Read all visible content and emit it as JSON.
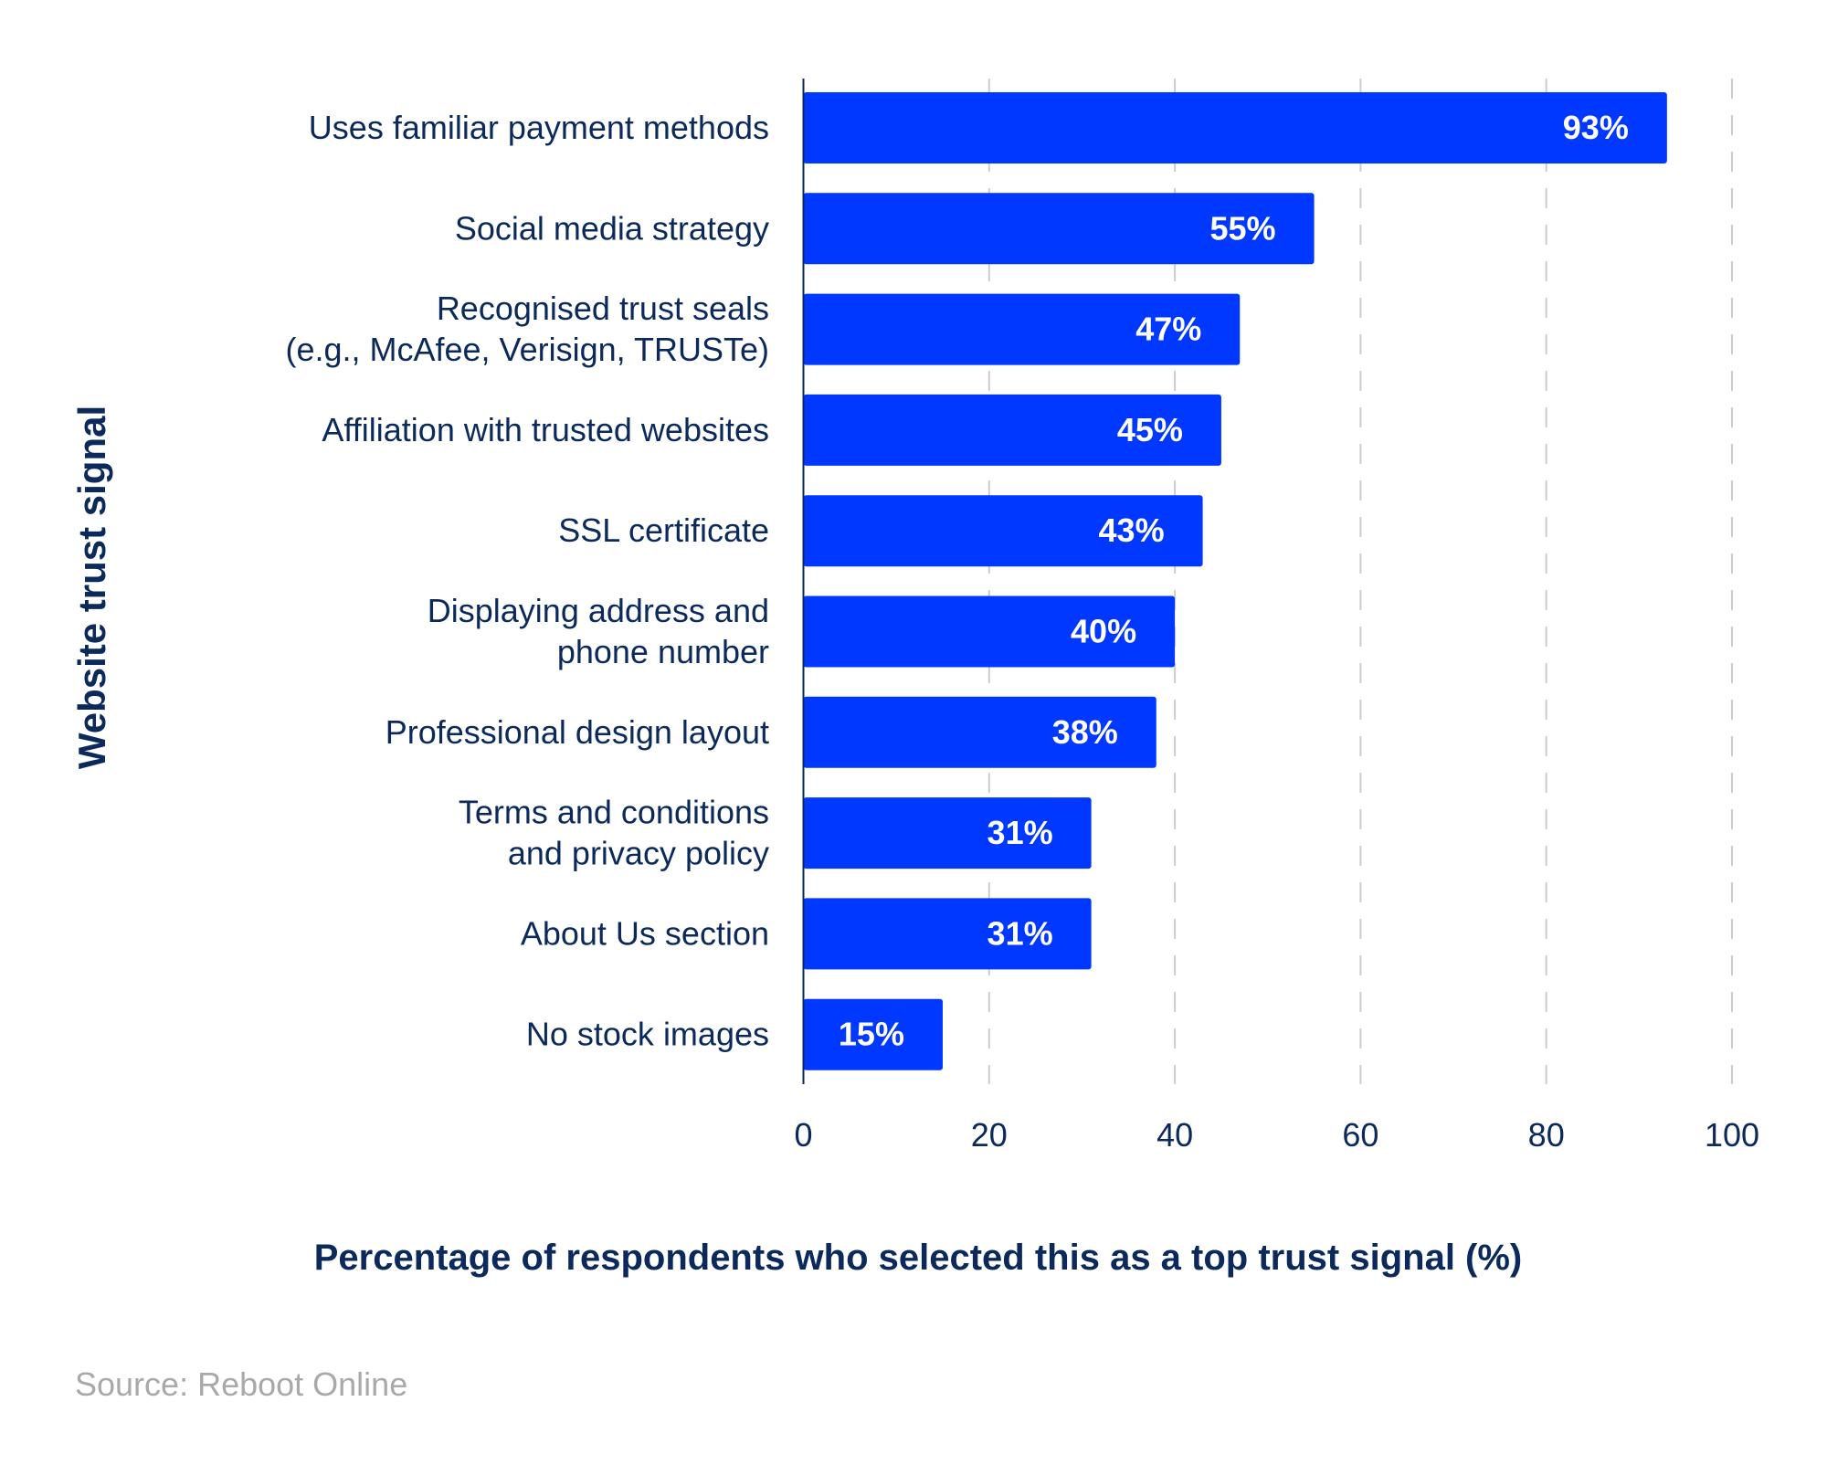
{
  "chart_data": {
    "type": "bar",
    "orientation": "horizontal",
    "categories": [
      [
        "Uses familiar payment methods"
      ],
      [
        "Social media strategy"
      ],
      [
        "Recognised trust seals",
        "(e.g., McAfee, Verisign, TRUSTe)"
      ],
      [
        "Affiliation with trusted websites"
      ],
      [
        "SSL certificate"
      ],
      [
        "Displaying address and",
        "phone number"
      ],
      [
        "Professional design layout"
      ],
      [
        "Terms and conditions",
        "and privacy policy"
      ],
      [
        "About Us section"
      ],
      [
        "No stock images"
      ]
    ],
    "values": [
      93,
      55,
      47,
      45,
      43,
      40,
      38,
      31,
      31,
      15
    ],
    "data_labels": [
      "93%",
      "55%",
      "47%",
      "45%",
      "43%",
      "40%",
      "38%",
      "31%",
      "31%",
      "15%"
    ],
    "xlabel": "Percentage of respondents who selected this as a top trust signal (%)",
    "ylabel": "Website trust signal",
    "xlim": [
      0,
      100
    ],
    "xticks": [
      "0",
      "20",
      "40",
      "60",
      "80",
      "100"
    ],
    "grid": "vertical dashed",
    "bar_color": "#0038ff",
    "text_color": "#0b2a5b"
  },
  "source": "Source: Reboot Online"
}
